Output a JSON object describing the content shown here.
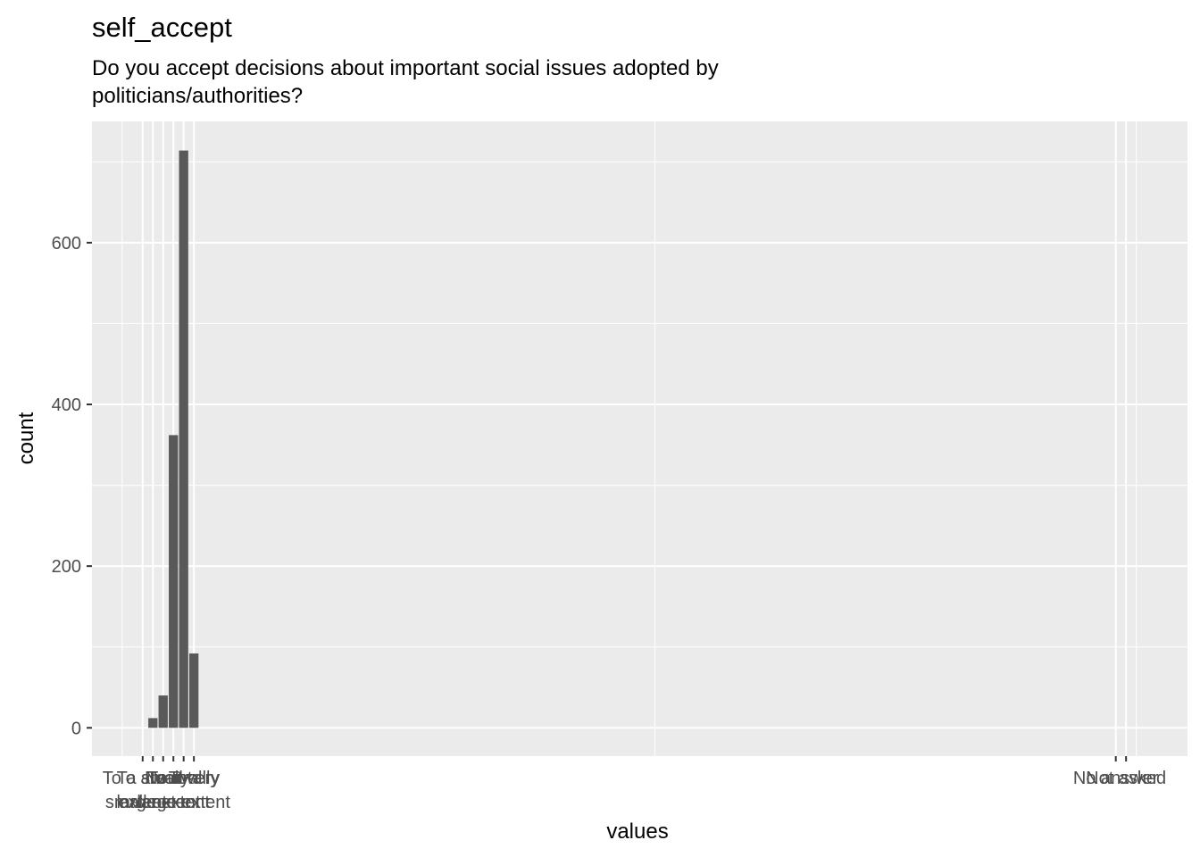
{
  "colors": {
    "panel_background": "#EBEBEB",
    "grid": "#FFFFFF",
    "bar_fill": "#595959",
    "tick": "#333333",
    "tick_label": "#4D4D4D"
  },
  "chart_data": {
    "type": "bar",
    "title": "self_accept",
    "subtitle_lines": [
      "Do you accept decisions about important social issues adopted by",
      "politicians/authorities?"
    ],
    "xlabel": "values",
    "ylabel": "count",
    "ylim": [
      -35,
      750
    ],
    "xlim": [
      -4.95,
      102
    ],
    "y_ticks": [
      0,
      200,
      400,
      600
    ],
    "y_tick_labels": [
      "0",
      "200",
      "400",
      "600"
    ],
    "x_ticks": [
      {
        "value": 0,
        "lines": [
          "To a small",
          "extent"
        ]
      },
      {
        "value": 1,
        "lines": [
          "To a very",
          "small extent"
        ]
      },
      {
        "value": 2,
        "lines": [
          "To a",
          "large extent"
        ]
      },
      {
        "value": 3,
        "lines": [
          "Neutral",
          ""
        ]
      },
      {
        "value": 4,
        "lines": [
          "To a very",
          "large extent"
        ]
      },
      {
        "value": 5,
        "lines": [
          "Totally",
          ""
        ]
      },
      {
        "value": 95,
        "lines": [
          "No answer",
          ""
        ]
      },
      {
        "value": 96,
        "lines": [
          "Not asked",
          ""
        ]
      }
    ],
    "x_minor_values": [
      -2,
      97
    ],
    "bars": [
      {
        "x": 1,
        "y": 12
      },
      {
        "x": 2,
        "y": 40
      },
      {
        "x": 3,
        "y": 362
      },
      {
        "x": 4,
        "y": 714
      },
      {
        "x": 5,
        "y": 92
      }
    ],
    "bar_width": 0.9,
    "grid": true
  }
}
